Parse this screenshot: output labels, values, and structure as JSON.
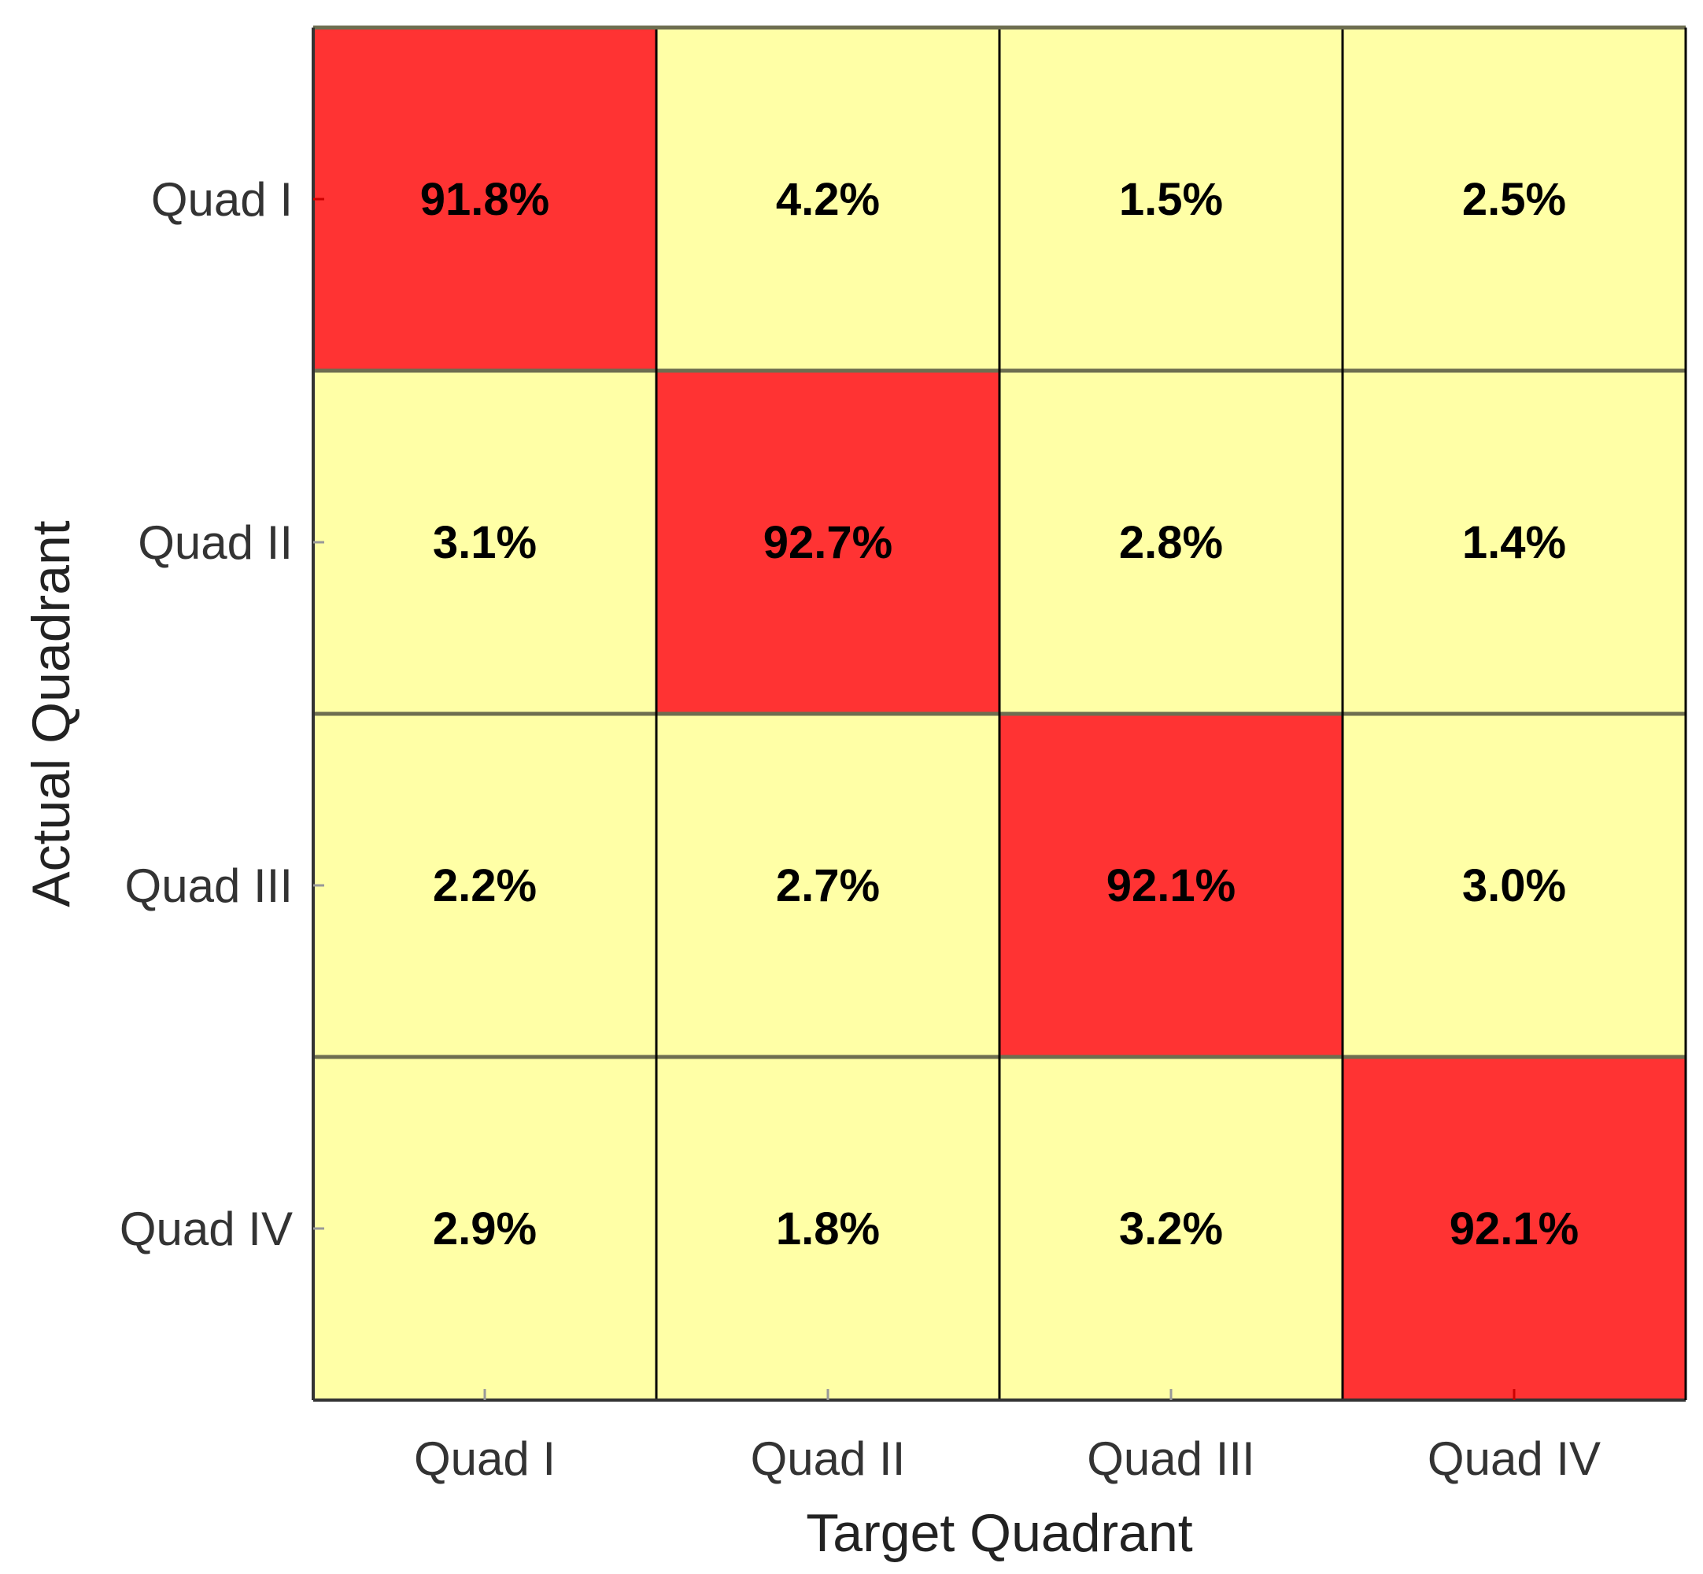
{
  "chart_data": {
    "type": "heatmap",
    "title": "",
    "xlabel": "Target Quadrant",
    "ylabel": "Actual Quadrant",
    "x_categories": [
      "Quad I",
      "Quad II",
      "Quad III",
      "Quad IV"
    ],
    "y_categories": [
      "Quad I",
      "Quad II",
      "Quad III",
      "Quad IV"
    ],
    "values": [
      [
        91.8,
        4.2,
        1.5,
        2.5
      ],
      [
        3.1,
        92.7,
        2.8,
        1.4
      ],
      [
        2.2,
        2.7,
        92.1,
        3.0
      ],
      [
        2.9,
        1.8,
        3.2,
        92.1
      ]
    ],
    "labels": [
      [
        "91.8%",
        "4.2%",
        "1.5%",
        "2.5%"
      ],
      [
        "3.1%",
        "92.7%",
        "2.8%",
        "1.4%"
      ],
      [
        "2.2%",
        "2.7%",
        "92.1%",
        "3.0%"
      ],
      [
        "2.9%",
        "1.8%",
        "3.2%",
        "92.1%"
      ]
    ],
    "colors": {
      "diagonal": "#ff3333",
      "off_diagonal": "#ffffa6",
      "grid_line": "#6e6e50",
      "axis_frame": "#000000"
    },
    "grid": true,
    "legend": "none"
  }
}
